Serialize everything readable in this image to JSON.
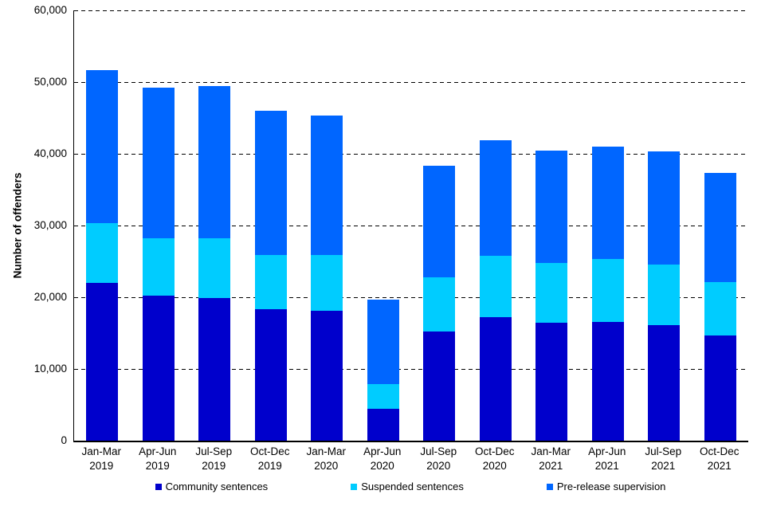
{
  "chart_data": {
    "type": "bar",
    "stacked": true,
    "title": "",
    "xlabel": "",
    "ylabel": "Number of offenders",
    "ylim": [
      0,
      60000
    ],
    "ytick_interval": 10000,
    "ytick_labels": [
      "0",
      "10,000",
      "20,000",
      "30,000",
      "40,000",
      "50,000",
      "60,000"
    ],
    "grid": "horizontal-dashed",
    "legend_position": "bottom",
    "categories": [
      {
        "quarter": "Jan-Mar",
        "year": "2019"
      },
      {
        "quarter": "Apr-Jun",
        "year": "2019"
      },
      {
        "quarter": "Jul-Sep",
        "year": "2019"
      },
      {
        "quarter": "Oct-Dec",
        "year": "2019"
      },
      {
        "quarter": "Jan-Mar",
        "year": "2020"
      },
      {
        "quarter": "Apr-Jun",
        "year": "2020"
      },
      {
        "quarter": "Jul-Sep",
        "year": "2020"
      },
      {
        "quarter": "Oct-Dec",
        "year": "2020"
      },
      {
        "quarter": "Jan-Mar",
        "year": "2021"
      },
      {
        "quarter": "Apr-Jun",
        "year": "2021"
      },
      {
        "quarter": "Jul-Sep",
        "year": "2021"
      },
      {
        "quarter": "Oct-Dec",
        "year": "2021"
      }
    ],
    "series": [
      {
        "name": "Community sentences",
        "color": "#0000CC",
        "values": [
          22000,
          20200,
          19900,
          18300,
          18100,
          4500,
          15200,
          17200,
          16500,
          16600,
          16100,
          14700
        ]
      },
      {
        "name": "Suspended sentences",
        "color": "#00CCFF",
        "values": [
          8300,
          8000,
          8300,
          7600,
          7800,
          3400,
          7600,
          8600,
          8300,
          8700,
          8500,
          7400
        ]
      },
      {
        "name": "Pre-release supervision",
        "color": "#0066FF",
        "values": [
          21400,
          21000,
          21300,
          20100,
          19400,
          11800,
          15500,
          16100,
          15600,
          15700,
          15700,
          15200
        ]
      }
    ],
    "totals": [
      51700,
      49200,
      49500,
      46000,
      45300,
      19700,
      38300,
      41900,
      40400,
      41000,
      40300,
      37300
    ]
  },
  "colors": {
    "background": "#FFFFFF",
    "axis": "#000000",
    "text": "#000000"
  }
}
